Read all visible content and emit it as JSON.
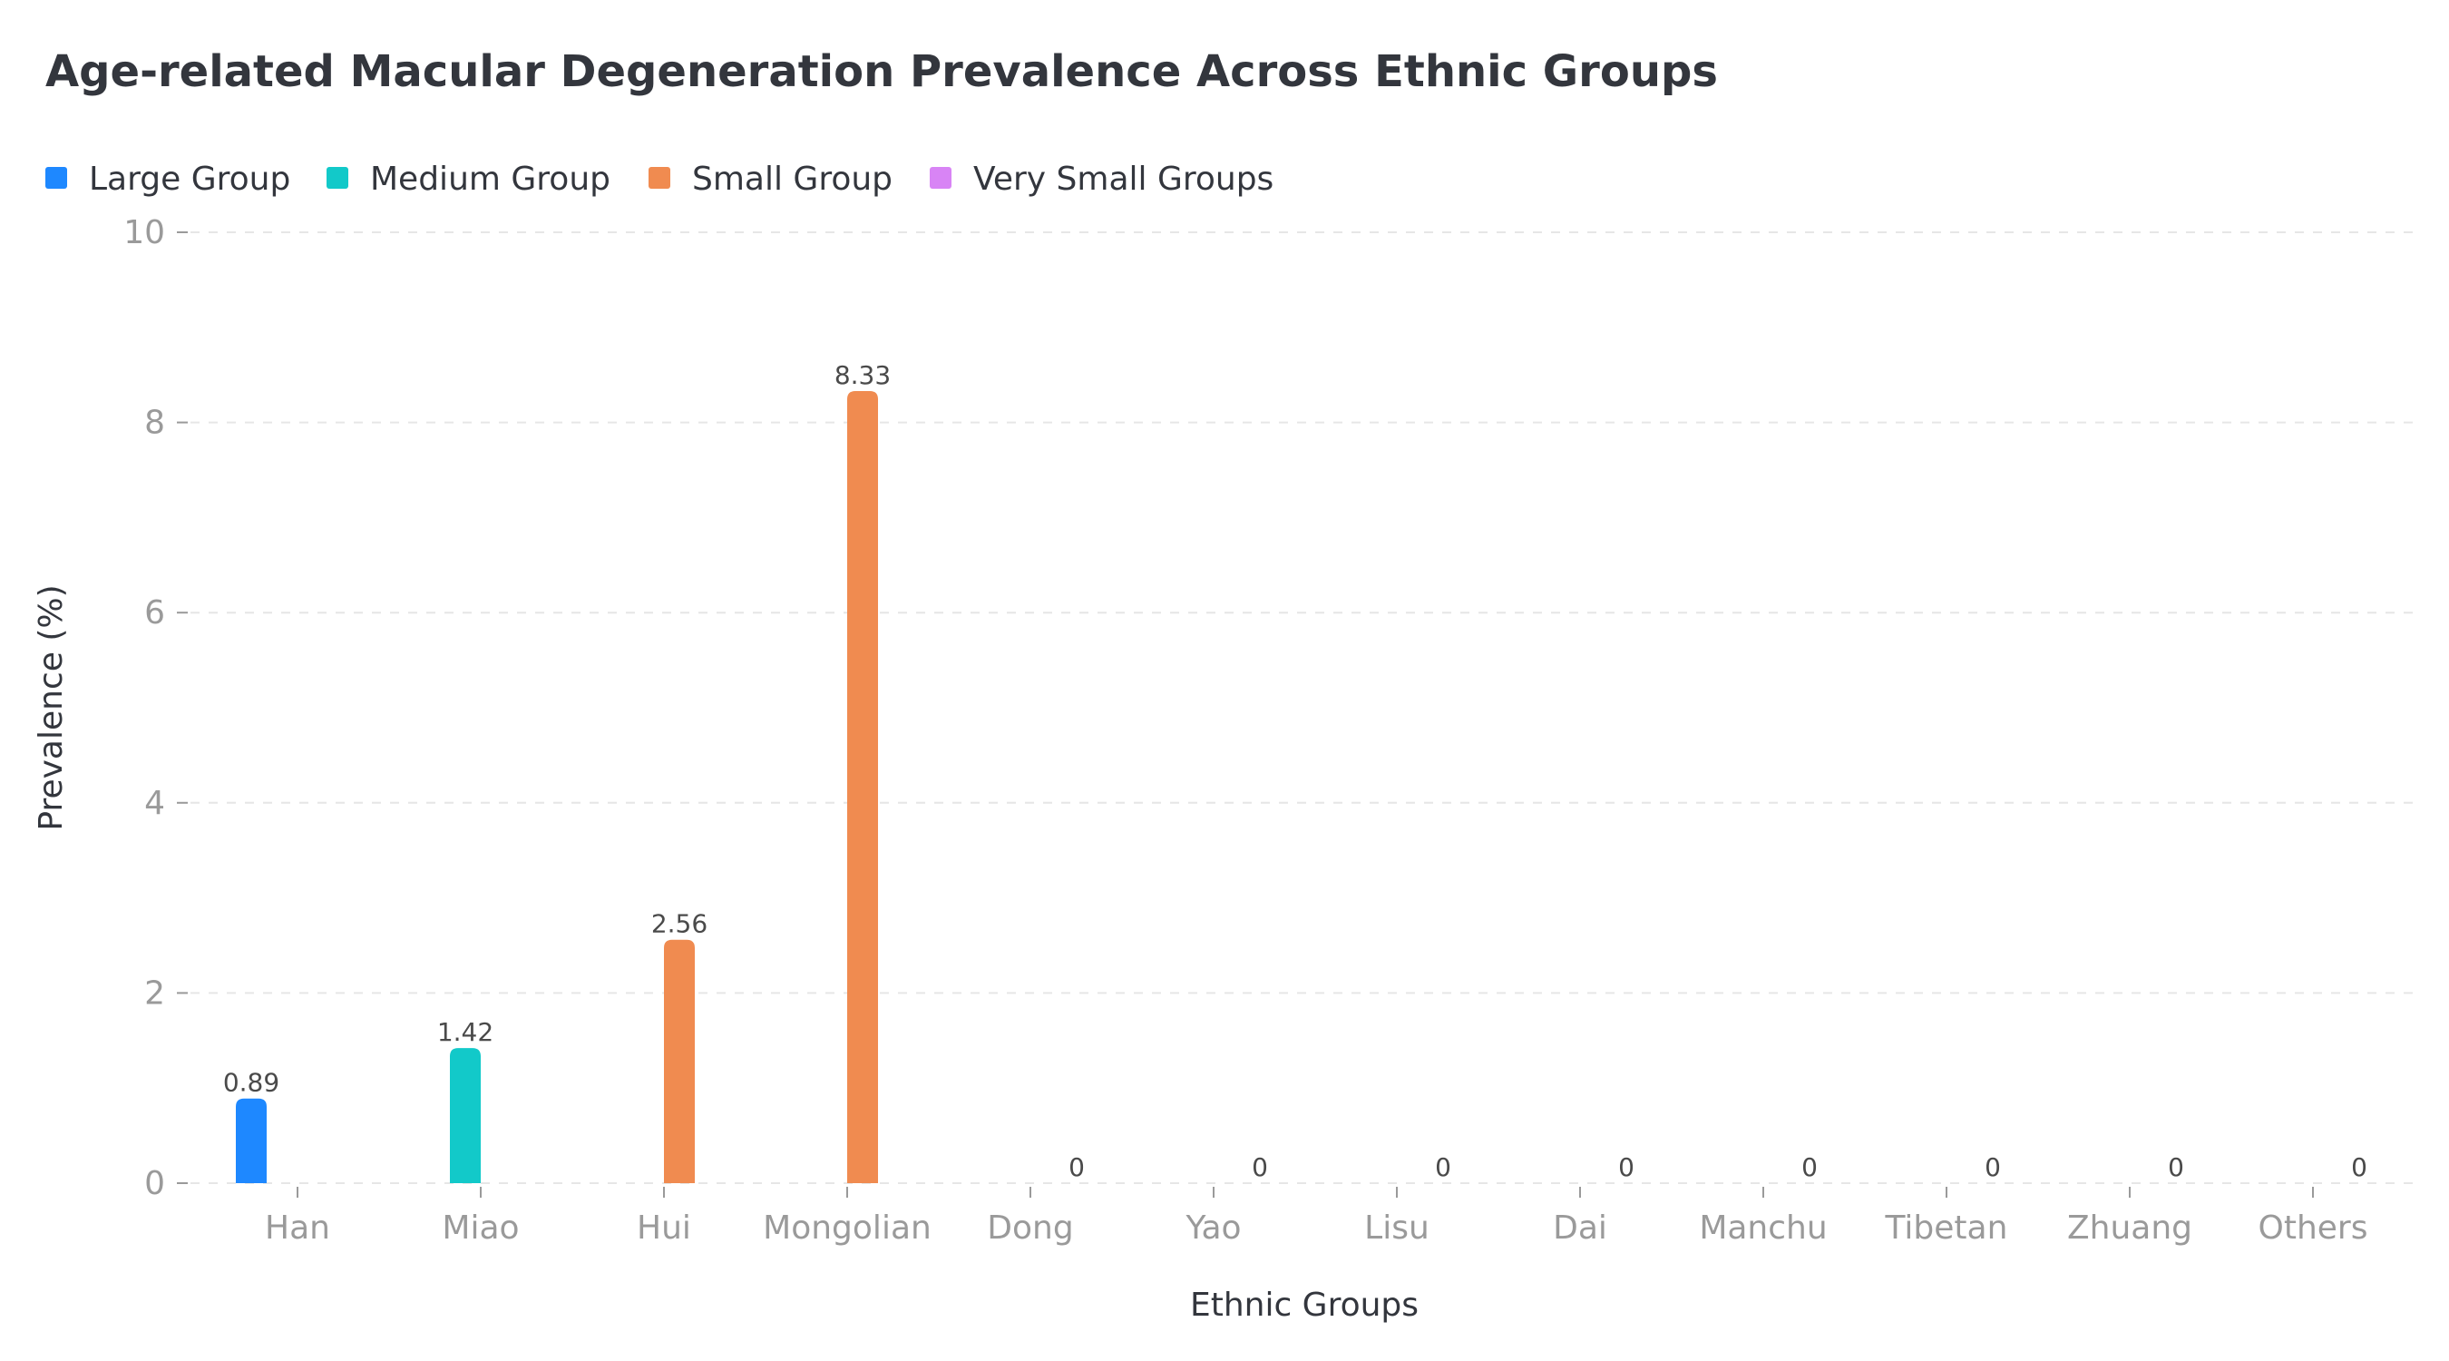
{
  "chart_data": {
    "type": "bar",
    "title": "Age-related Macular Degeneration Prevalence Across Ethnic Groups",
    "xlabel": "Ethnic Groups",
    "ylabel": "Prevalence (%)",
    "ylim": [
      0,
      10
    ],
    "yticks": [
      0,
      2,
      4,
      6,
      8,
      10
    ],
    "grid": true,
    "legend_position": "top-left",
    "categories": [
      "Han",
      "Miao",
      "Hui",
      "Mongolian",
      "Dong",
      "Yao",
      "Lisu",
      "Dai",
      "Manchu",
      "Tibetan",
      "Zhuang",
      "Others"
    ],
    "series": [
      {
        "name": "Large Group",
        "color": "#1e88ff",
        "values": [
          0.89,
          null,
          null,
          null,
          null,
          null,
          null,
          null,
          null,
          null,
          null,
          null
        ]
      },
      {
        "name": "Medium Group",
        "color": "#12c9c9",
        "values": [
          null,
          1.42,
          null,
          null,
          null,
          null,
          null,
          null,
          null,
          null,
          null,
          null
        ]
      },
      {
        "name": "Small Group",
        "color": "#f08b50",
        "values": [
          null,
          null,
          2.56,
          8.33,
          null,
          null,
          null,
          null,
          null,
          null,
          null,
          null
        ]
      },
      {
        "name": "Very Small Groups",
        "color": "#d884f5",
        "values": [
          null,
          null,
          null,
          null,
          0,
          0,
          0,
          0,
          0,
          0,
          0,
          0
        ]
      }
    ],
    "data_labels": [
      "0.89",
      "1.42",
      "2.56",
      "8.33",
      "0",
      "0",
      "0",
      "0",
      "0",
      "0",
      "0",
      "0"
    ]
  }
}
